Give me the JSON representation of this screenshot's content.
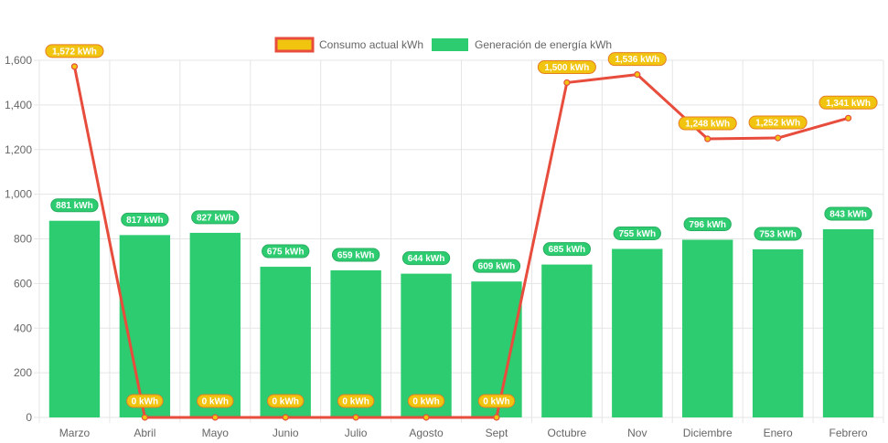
{
  "chart_data": {
    "type": "bar+line",
    "categories": [
      "Marzo",
      "Abril",
      "Mayo",
      "Junio",
      "Julio",
      "Agosto",
      "Sept",
      "Octubre",
      "Nov",
      "Diciembre",
      "Enero",
      "Febrero"
    ],
    "ylim": [
      0,
      1600
    ],
    "ytick_step": 200,
    "ytick_labels": [
      "0",
      "200",
      "400",
      "600",
      "800",
      "1,000",
      "1,200",
      "1,400",
      "1,600"
    ],
    "grid": true,
    "legend_position": "top-center",
    "series": [
      {
        "name": "Consumo actual kWh",
        "type": "line",
        "color": "#e74c3c",
        "label_color": "#f1c40f",
        "values": [
          1572,
          0,
          0,
          0,
          0,
          0,
          0,
          1500,
          1536,
          1248,
          1252,
          1341
        ],
        "data_labels": [
          "1,572 kWh",
          "0 kWh",
          "0 kWh",
          "0 kWh",
          "0 kWh",
          "0 kWh",
          "0 kWh",
          "1,500 kWh",
          "1,536 kWh",
          "1,248 kWh",
          "1,252 kWh",
          "1,341 kWh"
        ]
      },
      {
        "name": "Generación de energía kWh",
        "type": "bar",
        "color": "#2ecc71",
        "values": [
          881,
          817,
          827,
          675,
          659,
          644,
          609,
          685,
          755,
          796,
          753,
          843
        ],
        "data_labels": [
          "881 kWh",
          "817 kWh",
          "827 kWh",
          "675 kWh",
          "659 kWh",
          "644 kWh",
          "609 kWh",
          "685 kWh",
          "755 kWh",
          "796 kWh",
          "753 kWh",
          "843 kWh"
        ]
      }
    ]
  }
}
